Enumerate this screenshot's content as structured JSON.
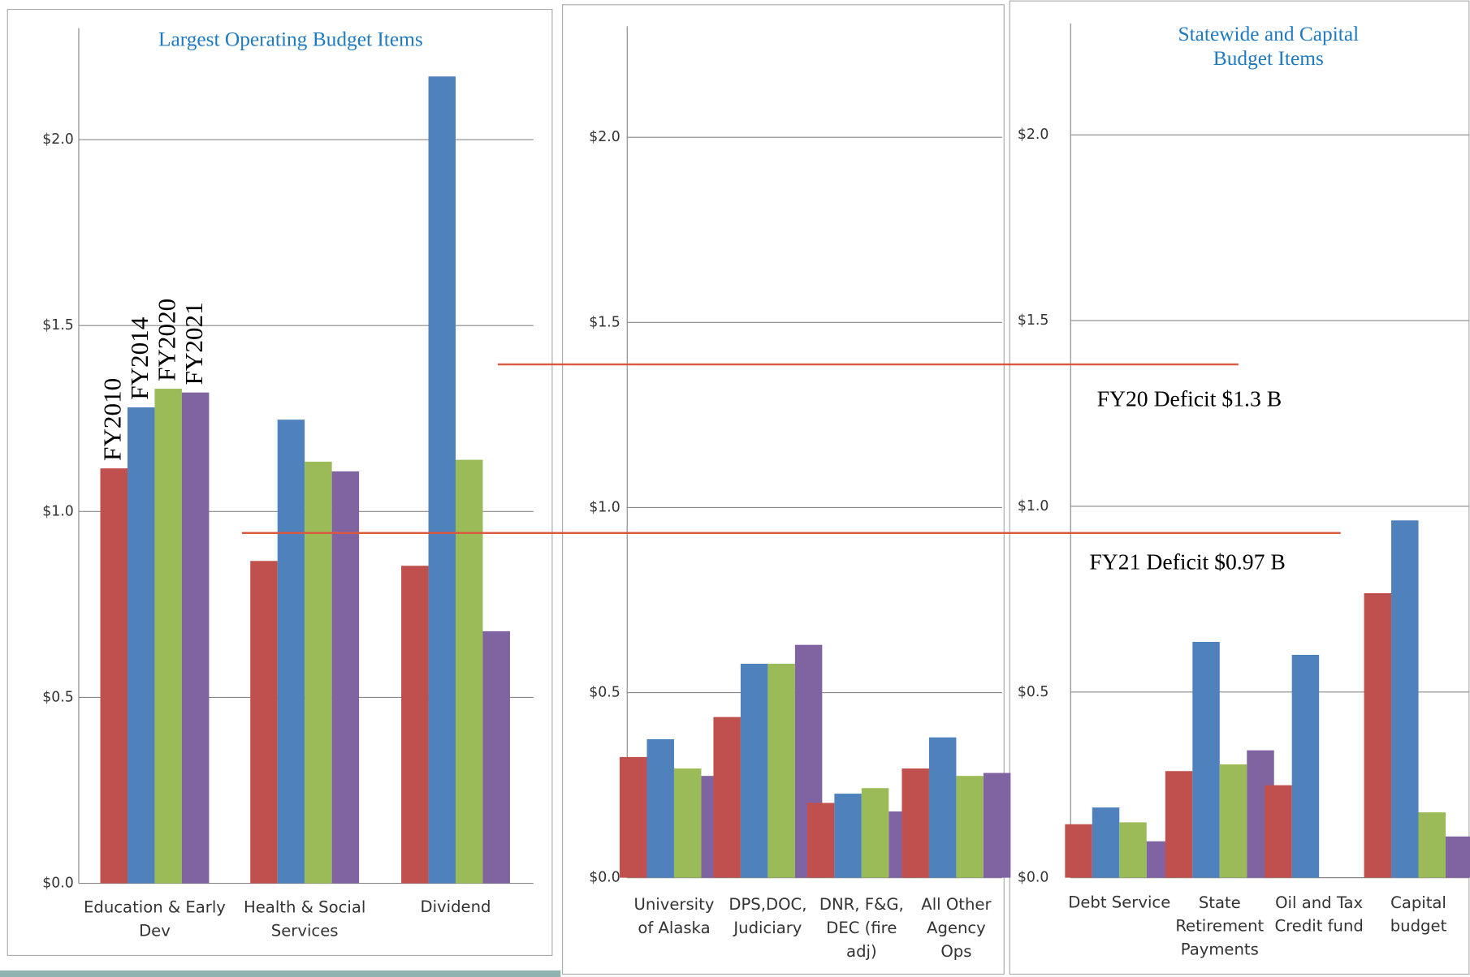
{
  "chart_data": [
    {
      "type": "bar",
      "title": "Largest Operating Budget Items",
      "categories": [
        "Education & Early\nDev",
        "Health & Social\nServices",
        "Dividend"
      ],
      "series": [
        {
          "name": "FY2010",
          "color": "#c0504d",
          "values": [
            1.116,
            0.867,
            0.854
          ]
        },
        {
          "name": "FY2014",
          "color": "#4f81bd",
          "values": [
            1.28,
            1.247,
            2.17
          ]
        },
        {
          "name": "FY2020",
          "color": "#9bbb59",
          "values": [
            1.33,
            1.134,
            1.139
          ]
        },
        {
          "name": "FY2021",
          "color": "#8064a2",
          "values": [
            1.32,
            1.108,
            0.678
          ]
        }
      ],
      "ylim": [
        0,
        2.3
      ],
      "yticks": [
        {
          "value": 0,
          "label": "$0.0"
        },
        {
          "value": 0.5,
          "label": "$0.5"
        },
        {
          "value": 1,
          "label": "$1.0"
        },
        {
          "value": 1.5,
          "label": "$1.5"
        },
        {
          "value": 2,
          "label": "$2.0"
        }
      ],
      "grid": true
    },
    {
      "type": "bar",
      "categories": [
        "University\nof Alaska",
        "DPS,DOC,\nJudiciary",
        "DNR, F&G,\nDEC (fire\nadj)",
        "All Other\nAgency\nOps"
      ],
      "series": [
        {
          "color": "#c0504d",
          "values": [
            0.326,
            0.434,
            0.202,
            0.295
          ]
        },
        {
          "color": "#4f81bd",
          "values": [
            0.374,
            0.578,
            0.227,
            0.379
          ]
        },
        {
          "color": "#9bbb59",
          "values": [
            0.295,
            0.578,
            0.242,
            0.275
          ]
        },
        {
          "color": "#8064a2",
          "values": [
            0.275,
            0.629,
            0.179,
            0.283
          ]
        }
      ],
      "ylim": [
        0,
        2.3
      ],
      "yticks": [
        {
          "value": 0,
          "label": "$0.0"
        },
        {
          "value": 0.5,
          "label": "$0.5"
        },
        {
          "value": 1,
          "label": "$1.0"
        },
        {
          "value": 1.5,
          "label": "$1.5"
        },
        {
          "value": 2,
          "label": "$2.0"
        }
      ],
      "grid": true
    },
    {
      "type": "bar",
      "title": "Statewide and Capital\nBudget Items",
      "categories": [
        "Debt Service",
        "State\nRetirement\nPayments",
        "Oil and Tax\nCredit fund",
        "Capital\nbudget"
      ],
      "series": [
        {
          "color": "#c0504d",
          "values": [
            0.144,
            0.287,
            0.249,
            0.766
          ]
        },
        {
          "color": "#4f81bd",
          "values": [
            0.189,
            0.635,
            0.6,
            0.962
          ]
        },
        {
          "color": "#9bbb59",
          "values": [
            0.149,
            0.305,
            null,
            0.176
          ]
        },
        {
          "color": "#8064a2",
          "values": [
            0.098,
            0.343,
            null,
            0.111
          ]
        }
      ],
      "ylim": [
        0,
        2.3
      ],
      "yticks": [
        {
          "value": 0,
          "label": "$0.0"
        },
        {
          "value": 0.5,
          "label": "$0.5"
        },
        {
          "value": 1,
          "label": "$1.0"
        },
        {
          "value": 1.5,
          "label": "$1.5"
        },
        {
          "value": 2,
          "label": "$2.0"
        }
      ],
      "grid": true
    }
  ],
  "annotations": [
    "FY20 Deficit $1.3 B",
    "FY21 Deficit $0.97 B"
  ]
}
